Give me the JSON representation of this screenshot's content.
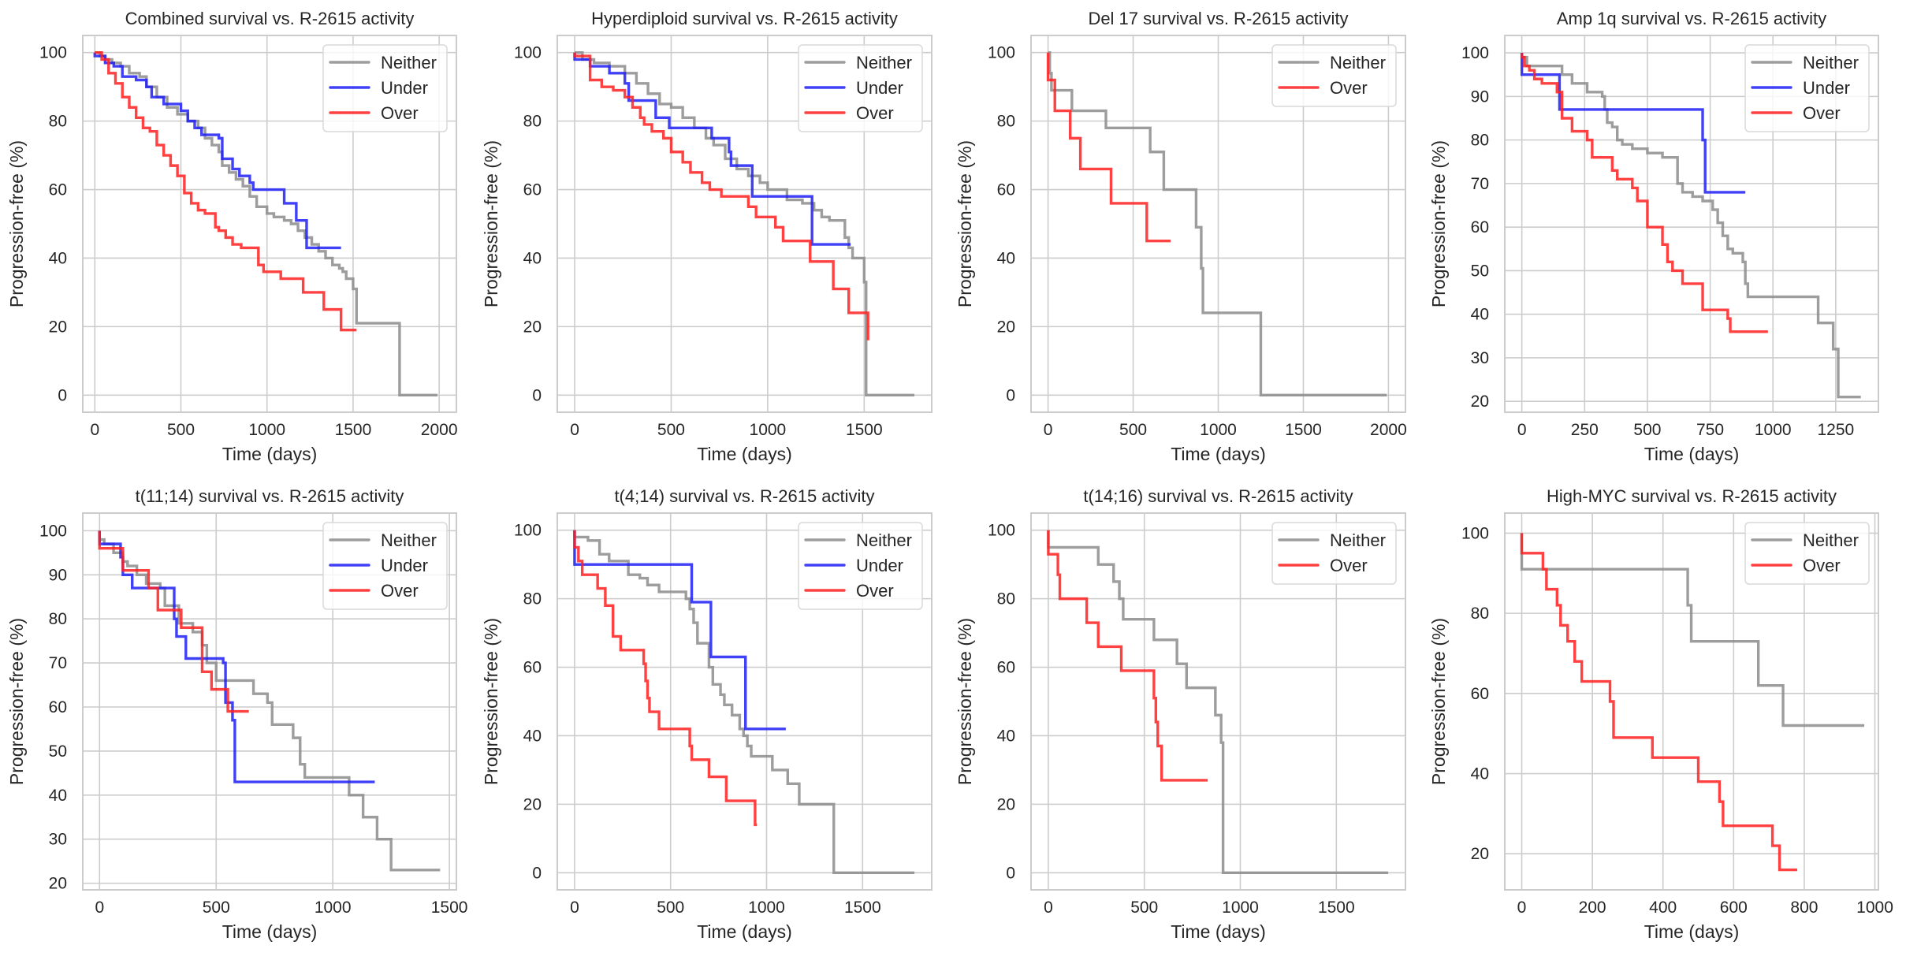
{
  "chart_data": [
    {
      "type": "line",
      "step": true,
      "title": "Combined survival vs. R-2615 activity",
      "xlabel": "Time (days)",
      "ylabel": "Progression-free (%)",
      "xlim": [
        -70,
        2100
      ],
      "ylim": [
        -5,
        105
      ],
      "xticks": [
        0,
        500,
        1000,
        1500,
        2000
      ],
      "yticks": [
        0,
        20,
        40,
        60,
        80,
        100
      ],
      "grid": true,
      "legend": "top-right",
      "series": [
        {
          "name": "Neither",
          "color": "#8c8c8c",
          "x": [
            0,
            30,
            60,
            100,
            150,
            200,
            260,
            300,
            360,
            420,
            480,
            540,
            600,
            640,
            680,
            720,
            740,
            780,
            820,
            860,
            900,
            940,
            1000,
            1040,
            1100,
            1140,
            1180,
            1220,
            1260,
            1300,
            1340,
            1380,
            1420,
            1440,
            1460,
            1500,
            1520,
            1760,
            1770,
            1990
          ],
          "y": [
            100,
            99,
            98,
            97,
            96,
            94,
            93,
            90,
            87,
            84,
            82,
            80,
            78,
            75,
            73,
            71,
            67,
            65,
            63,
            61,
            58,
            55,
            53,
            52,
            51,
            50,
            48,
            46,
            44,
            42,
            40,
            38,
            37,
            36,
            34,
            31,
            21,
            21,
            0,
            0
          ]
        },
        {
          "name": "Under",
          "color": "#1f1ff5",
          "x": [
            0,
            60,
            110,
            160,
            240,
            300,
            330,
            400,
            500,
            540,
            580,
            620,
            720,
            740,
            800,
            840,
            900,
            920,
            1000,
            1060,
            1100,
            1170,
            1230,
            1430
          ],
          "y": [
            99,
            97,
            96,
            93,
            92,
            90,
            87,
            85,
            83,
            80,
            78,
            76,
            75,
            69,
            66,
            64,
            62,
            60,
            60,
            60,
            56,
            51,
            43,
            43
          ]
        },
        {
          "name": "Over",
          "color": "#ff2020",
          "x": [
            0,
            40,
            80,
            120,
            160,
            200,
            240,
            280,
            320,
            360,
            400,
            440,
            480,
            520,
            560,
            600,
            640,
            700,
            720,
            760,
            800,
            850,
            950,
            980,
            1080,
            1210,
            1330,
            1430,
            1520
          ],
          "y": [
            100,
            98,
            94,
            91,
            87,
            84,
            81,
            78,
            77,
            73,
            70,
            67,
            64,
            59,
            56,
            54,
            53,
            49,
            48,
            46,
            44,
            43,
            38,
            36,
            34,
            30,
            25,
            19,
            19
          ]
        }
      ]
    },
    {
      "type": "line",
      "step": true,
      "title": "Hyperdiploid survival vs. R-2615 activity",
      "xlabel": "Time (days)",
      "ylabel": "Progression-free (%)",
      "xlim": [
        -90,
        1850
      ],
      "ylim": [
        -5,
        105
      ],
      "xticks": [
        0,
        500,
        1000,
        1500
      ],
      "yticks": [
        0,
        20,
        40,
        60,
        80,
        100
      ],
      "grid": true,
      "legend": "top-right",
      "series": [
        {
          "name": "Neither",
          "color": "#8c8c8c",
          "x": [
            0,
            40,
            100,
            180,
            260,
            320,
            380,
            440,
            500,
            560,
            620,
            680,
            720,
            780,
            840,
            900,
            960,
            1000,
            1100,
            1180,
            1240,
            1280,
            1320,
            1400,
            1420,
            1440,
            1500,
            1510,
            1760
          ],
          "y": [
            100,
            98,
            97,
            96,
            94,
            91,
            88,
            85,
            84,
            81,
            78,
            75,
            73,
            69,
            66,
            64,
            62,
            60,
            57,
            56,
            54,
            52,
            51,
            46,
            43,
            40,
            33,
            0,
            0
          ]
        },
        {
          "name": "Under",
          "color": "#1f1ff5",
          "x": [
            0,
            80,
            180,
            260,
            280,
            400,
            420,
            490,
            700,
            710,
            800,
            810,
            920,
            1230,
            1430
          ],
          "y": [
            98,
            96,
            94,
            91,
            86,
            86,
            81,
            78,
            78,
            75,
            71,
            67,
            58,
            44,
            44
          ]
        },
        {
          "name": "Over",
          "color": "#ff2020",
          "x": [
            0,
            80,
            140,
            200,
            260,
            300,
            340,
            360,
            400,
            460,
            500,
            560,
            600,
            660,
            700,
            760,
            900,
            940,
            1040,
            1080,
            1220,
            1340,
            1420,
            1520
          ],
          "y": [
            99,
            92,
            90,
            89,
            87,
            84,
            81,
            79,
            77,
            75,
            71,
            68,
            65,
            62,
            60,
            58,
            55,
            52,
            49,
            45,
            39,
            31,
            24,
            16
          ]
        }
      ]
    },
    {
      "type": "line",
      "step": true,
      "title": "Del 17 survival vs. R-2615 activity",
      "xlabel": "Time (days)",
      "ylabel": "Progression-free (%)",
      "xlim": [
        -100,
        2100
      ],
      "ylim": [
        -5,
        105
      ],
      "xticks": [
        0,
        500,
        1000,
        1500,
        2000
      ],
      "yticks": [
        0,
        20,
        40,
        60,
        80,
        100
      ],
      "grid": true,
      "legend": "top-right",
      "series": [
        {
          "name": "Neither",
          "color": "#8c8c8c",
          "x": [
            0,
            10,
            20,
            140,
            340,
            600,
            680,
            870,
            900,
            910,
            1250,
            1990
          ],
          "y": [
            100,
            94,
            89,
            83,
            78,
            71,
            60,
            49,
            37,
            24,
            0,
            0
          ]
        },
        {
          "name": "Over",
          "color": "#ff2020",
          "x": [
            0,
            40,
            130,
            190,
            370,
            580,
            720
          ],
          "y": [
            92,
            83,
            75,
            66,
            56,
            45,
            45
          ]
        }
      ]
    },
    {
      "type": "line",
      "step": true,
      "title": "Amp 1q survival vs. R-2615 activity",
      "xlabel": "Time (days)",
      "ylabel": "Progression-free (%)",
      "xlim": [
        -68,
        1420
      ],
      "ylim": [
        17.5,
        104
      ],
      "xticks": [
        0,
        250,
        500,
        750,
        1000,
        1250
      ],
      "yticks": [
        20,
        30,
        40,
        50,
        60,
        70,
        80,
        90,
        100
      ],
      "grid": true,
      "legend": "top-right",
      "series": [
        {
          "name": "Neither",
          "color": "#8c8c8c",
          "x": [
            0,
            20,
            140,
            160,
            200,
            260,
            280,
            320,
            330,
            340,
            360,
            380,
            400,
            440,
            500,
            560,
            620,
            640,
            680,
            720,
            760,
            780,
            800,
            820,
            840,
            880,
            890,
            900,
            1180,
            1240,
            1260,
            1350
          ],
          "y": [
            99,
            97,
            97,
            95,
            93,
            91,
            91,
            90,
            87,
            84,
            83,
            80,
            79,
            78,
            77,
            76,
            70,
            68,
            67,
            66,
            64,
            61,
            58,
            55,
            54,
            52,
            47,
            44,
            38,
            32,
            21,
            21
          ]
        },
        {
          "name": "Under",
          "color": "#1f1ff5",
          "x": [
            0,
            150,
            720,
            730,
            890
          ],
          "y": [
            95,
            87,
            80,
            68,
            68
          ]
        },
        {
          "name": "Over",
          "color": "#ff2020",
          "x": [
            0,
            10,
            30,
            50,
            80,
            140,
            160,
            200,
            260,
            280,
            360,
            380,
            440,
            460,
            500,
            560,
            580,
            600,
            640,
            700,
            720,
            820,
            830,
            980
          ],
          "y": [
            99,
            97,
            96,
            94,
            93,
            91,
            85,
            82,
            80,
            76,
            73,
            71,
            69,
            66,
            60,
            56,
            52,
            50,
            47,
            47,
            41,
            39,
            36,
            36
          ]
        }
      ]
    },
    {
      "type": "line",
      "step": true,
      "title": "t(11;14) survival vs. R-2615 activity",
      "xlabel": "Time (days)",
      "ylabel": "Progression-free (%)",
      "xlim": [
        -72,
        1530
      ],
      "ylim": [
        18.5,
        104
      ],
      "xticks": [
        0,
        500,
        1000,
        1500
      ],
      "yticks": [
        20,
        30,
        40,
        50,
        60,
        70,
        80,
        90,
        100
      ],
      "grid": true,
      "legend": "top-right",
      "series": [
        {
          "name": "Neither",
          "color": "#8c8c8c",
          "x": [
            0,
            20,
            60,
            100,
            120,
            160,
            200,
            260,
            280,
            340,
            400,
            440,
            460,
            500,
            640,
            660,
            720,
            740,
            830,
            860,
            880,
            1070,
            1130,
            1190,
            1250,
            1460
          ],
          "y": [
            98,
            97,
            95,
            93,
            92,
            90,
            88,
            87,
            83,
            79,
            77,
            74,
            70,
            66,
            66,
            63,
            61,
            56,
            53,
            47,
            44,
            40,
            35,
            30,
            23,
            23
          ]
        },
        {
          "name": "Under",
          "color": "#1f1ff5",
          "x": [
            0,
            90,
            100,
            140,
            320,
            330,
            370,
            530,
            540,
            570,
            580,
            1180
          ],
          "y": [
            97,
            94,
            90,
            87,
            80,
            76,
            71,
            70,
            61,
            57,
            43,
            43
          ]
        },
        {
          "name": "Over",
          "color": "#ff2020",
          "x": [
            0,
            100,
            210,
            250,
            350,
            440,
            480,
            550,
            640
          ],
          "y": [
            96,
            91,
            87,
            82,
            78,
            68,
            64,
            59,
            59
          ]
        }
      ]
    },
    {
      "type": "line",
      "step": true,
      "title": "t(4;14) survival vs. R-2615 activity",
      "xlabel": "Time (days)",
      "ylabel": "Progression-free (%)",
      "xlim": [
        -90,
        1860
      ],
      "ylim": [
        -5,
        105
      ],
      "xticks": [
        0,
        500,
        1000,
        1500
      ],
      "yticks": [
        0,
        20,
        40,
        60,
        80,
        100
      ],
      "grid": true,
      "legend": "top-right",
      "series": [
        {
          "name": "Neither",
          "color": "#8c8c8c",
          "x": [
            0,
            70,
            130,
            180,
            280,
            340,
            380,
            440,
            580,
            600,
            620,
            640,
            700,
            720,
            760,
            780,
            820,
            860,
            880,
            900,
            920,
            1030,
            1110,
            1170,
            1350,
            1770
          ],
          "y": [
            98,
            97,
            93,
            91,
            87,
            86,
            84,
            82,
            80,
            77,
            73,
            67,
            60,
            55,
            52,
            49,
            46,
            42,
            40,
            37,
            34,
            30,
            26,
            20,
            0,
            0
          ]
        },
        {
          "name": "Under",
          "color": "#1f1ff5",
          "x": [
            0,
            610,
            710,
            890,
            1100
          ],
          "y": [
            90,
            79,
            63,
            42,
            42
          ]
        },
        {
          "name": "Over",
          "color": "#ff2020",
          "x": [
            0,
            20,
            40,
            120,
            160,
            200,
            240,
            360,
            370,
            380,
            390,
            440,
            600,
            610,
            700,
            790,
            940,
            950
          ],
          "y": [
            95,
            91,
            87,
            83,
            78,
            69,
            65,
            61,
            56,
            51,
            47,
            42,
            37,
            33,
            28,
            21,
            14,
            14
          ]
        }
      ]
    },
    {
      "type": "line",
      "step": true,
      "title": "t(14;16) survival vs. R-2615 activity",
      "xlabel": "Time (days)",
      "ylabel": "Progression-free (%)",
      "xlim": [
        -90,
        1860
      ],
      "ylim": [
        -5,
        105
      ],
      "xticks": [
        0,
        500,
        1000,
        1500
      ],
      "yticks": [
        0,
        20,
        40,
        60,
        80,
        100
      ],
      "grid": true,
      "legend": "top-right",
      "series": [
        {
          "name": "Neither",
          "color": "#8c8c8c",
          "x": [
            0,
            260,
            340,
            370,
            390,
            550,
            670,
            720,
            870,
            900,
            910,
            1770
          ],
          "y": [
            95,
            90,
            85,
            80,
            74,
            68,
            61,
            54,
            46,
            38,
            0,
            0
          ]
        },
        {
          "name": "Over",
          "color": "#ff2020",
          "x": [
            0,
            50,
            60,
            200,
            260,
            380,
            550,
            560,
            570,
            590,
            830
          ],
          "y": [
            93,
            87,
            80,
            73,
            66,
            59,
            51,
            44,
            37,
            27,
            27
          ]
        }
      ]
    },
    {
      "type": "line",
      "step": true,
      "title": "High-MYC survival vs. R-2615 activity",
      "xlabel": "Time (days)",
      "ylabel": "Progression-free (%)",
      "xlim": [
        -48,
        1010
      ],
      "ylim": [
        11,
        105
      ],
      "xticks": [
        0,
        200,
        400,
        600,
        800,
        1000
      ],
      "yticks": [
        20,
        40,
        60,
        80,
        100
      ],
      "grid": true,
      "legend": "top-right",
      "series": [
        {
          "name": "Neither",
          "color": "#8c8c8c",
          "x": [
            0,
            470,
            480,
            670,
            740,
            970
          ],
          "y": [
            91,
            82,
            73,
            62,
            52,
            52
          ]
        },
        {
          "name": "Over",
          "color": "#ff2020",
          "x": [
            0,
            60,
            70,
            100,
            110,
            130,
            150,
            170,
            200,
            250,
            260,
            370,
            500,
            560,
            570,
            710,
            730,
            780
          ],
          "y": [
            95,
            91,
            86,
            82,
            77,
            73,
            68,
            63,
            63,
            58,
            49,
            44,
            38,
            33,
            27,
            22,
            16,
            16
          ]
        }
      ]
    }
  ]
}
